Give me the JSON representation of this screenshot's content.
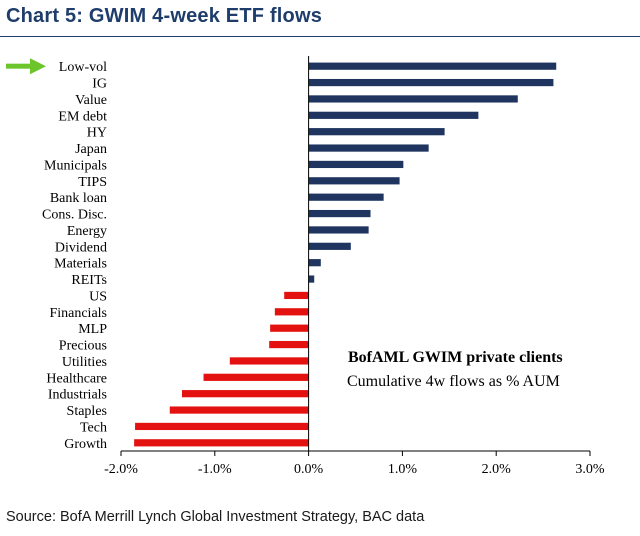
{
  "header": {
    "title": "Chart 5: GWIM 4-week ETF flows"
  },
  "footer": {
    "source": "Source: BofA Merrill Lynch Global Investment Strategy, BAC data"
  },
  "colors": {
    "positive": "#1f3560",
    "negative": "#e3110f",
    "arrow": "#6cc52a",
    "axis": "#000000"
  },
  "chart_data": {
    "type": "bar",
    "orientation": "horizontal",
    "title": "Chart 5: GWIM 4-week ETF flows",
    "categories": [
      "Low-vol",
      "IG",
      "Value",
      "EM debt",
      "HY",
      "Japan",
      "Municipals",
      "TIPS",
      "Bank loan",
      "Cons. Disc.",
      "Energy",
      "Dividend",
      "Materials",
      "REITs",
      "US",
      "Financials",
      "MLP",
      "Precious",
      "Utilities",
      "Healthcare",
      "Industrials",
      "Staples",
      "Tech",
      "Growth"
    ],
    "values": [
      2.64,
      2.61,
      2.23,
      1.81,
      1.45,
      1.28,
      1.01,
      0.97,
      0.8,
      0.66,
      0.64,
      0.45,
      0.13,
      0.06,
      -0.26,
      -0.36,
      -0.41,
      -0.42,
      -0.84,
      -1.12,
      -1.35,
      -1.48,
      -1.85,
      -1.86
    ],
    "xlim": [
      -2.0,
      3.0
    ],
    "xticks": [
      -2.0,
      -1.0,
      0.0,
      1.0,
      2.0,
      3.0
    ],
    "xtick_labels": [
      "-2.0%",
      "-1.0%",
      "0.0%",
      "1.0%",
      "2.0%",
      "3.0%"
    ],
    "highlighted_category": "Low-vol",
    "annotation": {
      "line1": "BofAML GWIM private clients",
      "line2": "Cumulative 4w flows as % AUM"
    },
    "grid": false,
    "legend": "none"
  }
}
